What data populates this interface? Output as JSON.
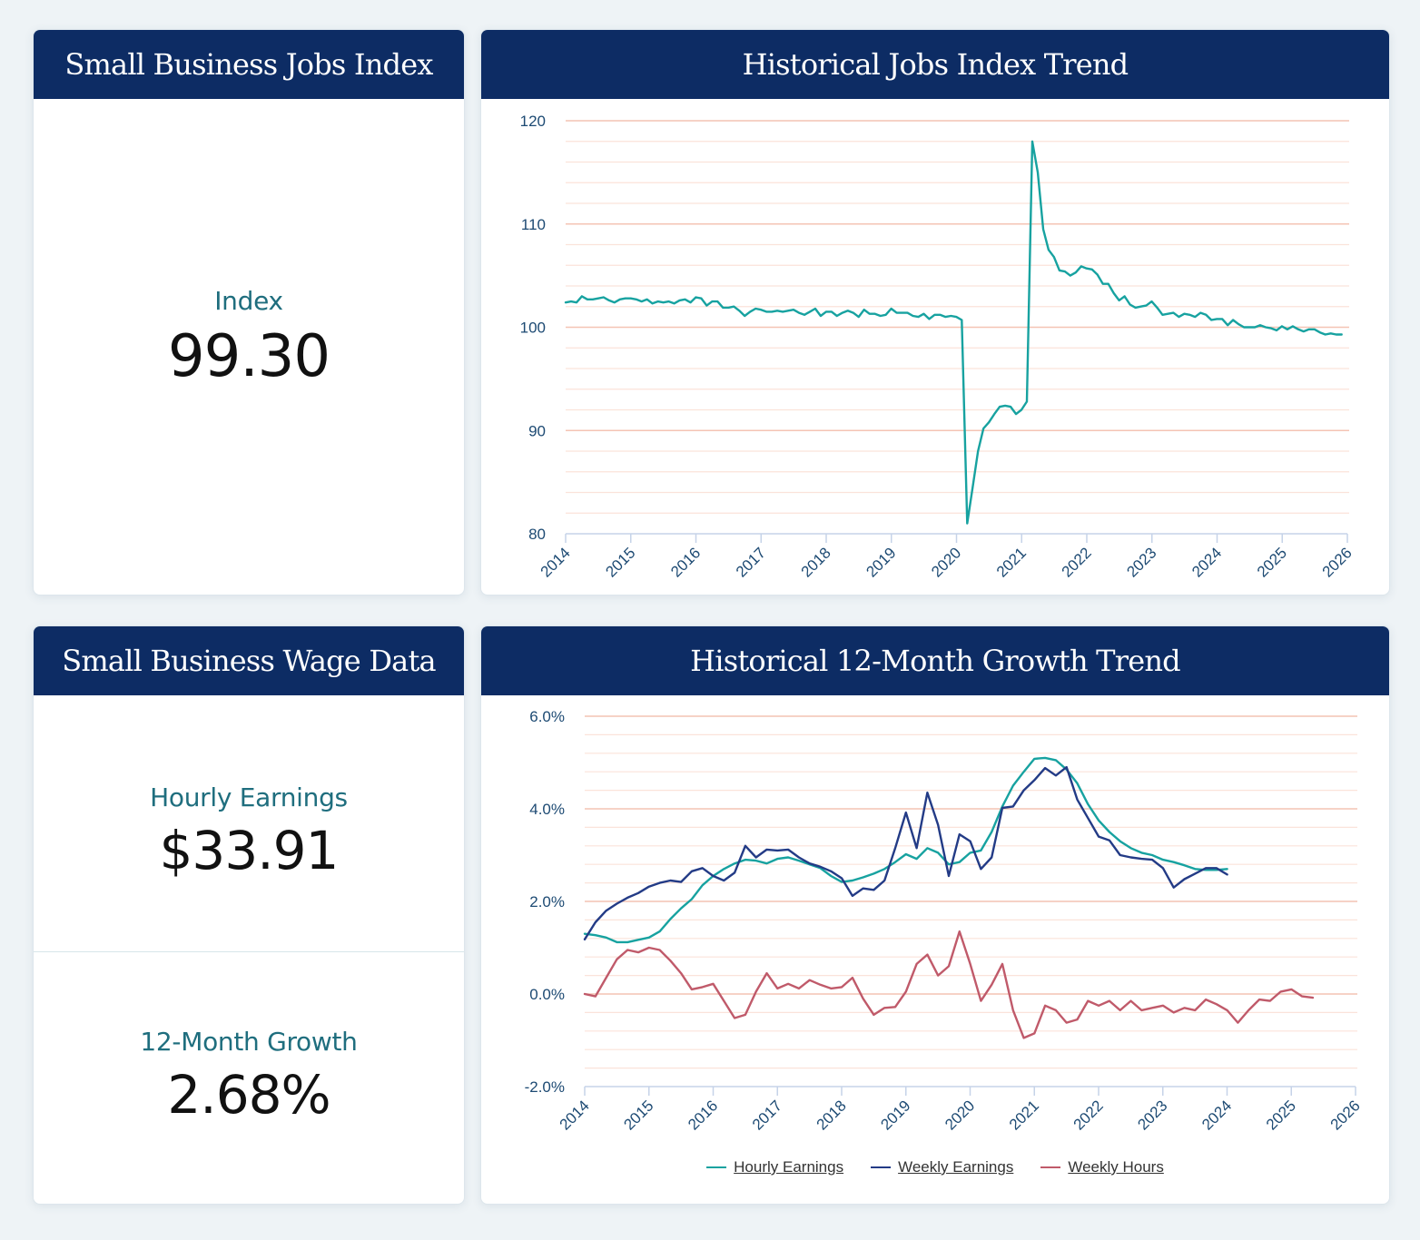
{
  "panels": {
    "jobs_index": {
      "title": "Small Business Jobs Index",
      "metric_label": "Index",
      "metric_value": "99.30"
    },
    "jobs_trend": {
      "title": "Historical Jobs Index Trend"
    },
    "wage_data": {
      "title": "Small Business Wage Data",
      "hourly_label": "Hourly Earnings",
      "hourly_value": "$33.91",
      "growth_label": "12-Month Growth",
      "growth_value": "2.68%"
    },
    "growth_trend": {
      "title": "Historical 12-Month Growth Trend"
    }
  },
  "colors": {
    "header_bg": "#0d2c64",
    "teal": "#17a2a0",
    "navy": "#233b86",
    "rose": "#c05a6a",
    "grid_major": "#f4c4b4",
    "grid_minor": "#fbe3da",
    "axis": "#c6d3e8"
  },
  "chart_data": [
    {
      "type": "line",
      "title": "Historical Jobs Index Trend",
      "xlabel": "",
      "ylabel": "",
      "xlim": [
        2014,
        2026
      ],
      "ylim": [
        80,
        120
      ],
      "x_ticks": [
        "2014",
        "2015",
        "2016",
        "2017",
        "2018",
        "2019",
        "2020",
        "2021",
        "2022",
        "2023",
        "2024",
        "2025",
        "2026"
      ],
      "y_ticks": [
        "80",
        "90",
        "100",
        "110",
        "120"
      ],
      "y_major_step": 10,
      "y_minor_step": 2,
      "grid": true,
      "series": [
        {
          "name": "Jobs Index",
          "color": "#17a2a0",
          "x_start": 2014.0,
          "x_step": 0.0833,
          "values": [
            102.4,
            102.5,
            102.4,
            103.0,
            102.7,
            102.7,
            102.8,
            102.9,
            102.6,
            102.4,
            102.7,
            102.8,
            102.8,
            102.7,
            102.5,
            102.7,
            102.3,
            102.5,
            102.4,
            102.5,
            102.3,
            102.6,
            102.7,
            102.4,
            102.9,
            102.8,
            102.1,
            102.5,
            102.5,
            101.9,
            101.9,
            102.0,
            101.6,
            101.1,
            101.5,
            101.8,
            101.7,
            101.5,
            101.5,
            101.6,
            101.5,
            101.6,
            101.7,
            101.4,
            101.2,
            101.5,
            101.8,
            101.1,
            101.5,
            101.5,
            101.1,
            101.4,
            101.6,
            101.4,
            101.0,
            101.7,
            101.3,
            101.3,
            101.1,
            101.2,
            101.8,
            101.4,
            101.4,
            101.4,
            101.1,
            101.0,
            101.3,
            100.8,
            101.2,
            101.2,
            101.0,
            101.1,
            101.0,
            100.7,
            81.0,
            84.5,
            88.0,
            90.2,
            90.8,
            91.6,
            92.3,
            92.4,
            92.3,
            91.6,
            92.0,
            92.8,
            118.0,
            115.0,
            109.5,
            107.5,
            106.8,
            105.5,
            105.4,
            105.0,
            105.3,
            105.9,
            105.7,
            105.6,
            105.1,
            104.2,
            104.2,
            103.3,
            102.6,
            103.0,
            102.2,
            101.9,
            102.0,
            102.1,
            102.5,
            101.9,
            101.2,
            101.3,
            101.4,
            101.0,
            101.3,
            101.2,
            101.0,
            101.4,
            101.2,
            100.7,
            100.8,
            100.8,
            100.2,
            100.7,
            100.3,
            100.0,
            100.0,
            100.0,
            100.2,
            100.0,
            99.9,
            99.7,
            100.1,
            99.8,
            100.1,
            99.8,
            99.6,
            99.8,
            99.8,
            99.5,
            99.3,
            99.4,
            99.3,
            99.3
          ]
        }
      ]
    },
    {
      "type": "line",
      "title": "Historical 12-Month Growth Trend",
      "xlabel": "",
      "ylabel": "",
      "xlim": [
        2014,
        2026
      ],
      "ylim": [
        -2.0,
        6.0
      ],
      "x_ticks": [
        "2014",
        "2015",
        "2016",
        "2017",
        "2018",
        "2019",
        "2020",
        "2021",
        "2022",
        "2023",
        "2024",
        "2025",
        "2026"
      ],
      "y_ticks": [
        "-2.0%",
        "0.0%",
        "2.0%",
        "4.0%",
        "6.0%"
      ],
      "y_major_step": 2.0,
      "y_minor_step": 0.4,
      "grid": true,
      "legend": "bottom-center",
      "series": [
        {
          "name": "Hourly Earnings",
          "color": "#17a2a0",
          "x_start": 2014.0,
          "x_step": 0.1667,
          "values": [
            1.3,
            1.27,
            1.22,
            1.12,
            1.12,
            1.17,
            1.22,
            1.35,
            1.62,
            1.85,
            2.05,
            2.35,
            2.55,
            2.7,
            2.82,
            2.9,
            2.88,
            2.82,
            2.92,
            2.95,
            2.88,
            2.8,
            2.72,
            2.55,
            2.42,
            2.45,
            2.52,
            2.6,
            2.7,
            2.85,
            3.02,
            2.92,
            3.15,
            3.05,
            2.8,
            2.85,
            3.05,
            3.1,
            3.5,
            4.05,
            4.5,
            4.8,
            5.08,
            5.1,
            5.05,
            4.85,
            4.55,
            4.1,
            3.75,
            3.5,
            3.3,
            3.15,
            3.05,
            3.0,
            2.9,
            2.85,
            2.78,
            2.7,
            2.68,
            2.68,
            2.7
          ]
        },
        {
          "name": "Weekly Earnings",
          "color": "#233b86",
          "x_start": 2014.0,
          "x_step": 0.1667,
          "values": [
            1.18,
            1.55,
            1.8,
            1.95,
            2.08,
            2.18,
            2.32,
            2.4,
            2.45,
            2.42,
            2.65,
            2.72,
            2.55,
            2.45,
            2.62,
            3.2,
            2.95,
            3.12,
            3.1,
            3.12,
            2.95,
            2.82,
            2.75,
            2.65,
            2.5,
            2.12,
            2.28,
            2.25,
            2.45,
            3.15,
            3.92,
            3.15,
            4.35,
            3.65,
            2.55,
            3.45,
            3.3,
            2.7,
            2.95,
            4.02,
            4.05,
            4.4,
            4.62,
            4.88,
            4.72,
            4.9,
            4.2,
            3.8,
            3.4,
            3.32,
            3.0,
            2.95,
            2.92,
            2.9,
            2.72,
            2.3,
            2.48,
            2.6,
            2.72,
            2.72,
            2.58
          ]
        },
        {
          "name": "Weekly Hours",
          "color": "#c05a6a",
          "x_start": 2014.0,
          "x_step": 0.1667,
          "values": [
            0.0,
            -0.05,
            0.35,
            0.75,
            0.95,
            0.9,
            1.0,
            0.95,
            0.72,
            0.45,
            0.1,
            0.15,
            0.22,
            -0.15,
            -0.52,
            -0.45,
            0.05,
            0.45,
            0.12,
            0.22,
            0.12,
            0.3,
            0.2,
            0.12,
            0.15,
            0.35,
            -0.1,
            -0.45,
            -0.3,
            -0.28,
            0.05,
            0.65,
            0.85,
            0.4,
            0.6,
            1.35,
            0.65,
            -0.15,
            0.2,
            0.65,
            -0.35,
            -0.95,
            -0.85,
            -0.25,
            -0.35,
            -0.62,
            -0.55,
            -0.15,
            -0.25,
            -0.15,
            -0.35,
            -0.15,
            -0.35,
            -0.3,
            -0.25,
            -0.4,
            -0.3,
            -0.35,
            -0.12,
            -0.22,
            -0.35,
            -0.62,
            -0.35,
            -0.12,
            -0.15,
            0.05,
            0.1,
            -0.05,
            -0.08
          ]
        }
      ]
    }
  ]
}
